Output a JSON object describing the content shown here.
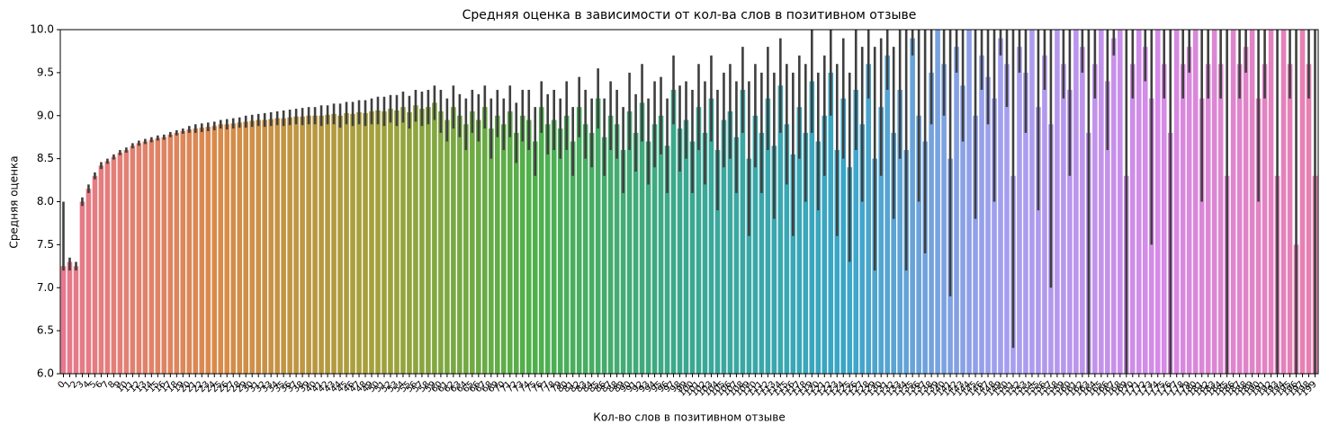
{
  "chart_data": {
    "type": "bar",
    "title": "Средняя оценка в зависимости от кол-ва слов в позитивном отзыве",
    "x_label": "Кол-во слов в позитивном отзыве",
    "y_label": "Средняя оценка",
    "ylim": [
      6,
      10
    ],
    "yticks": [
      {
        "value": 6,
        "label": "6.0"
      },
      {
        "value": 6.5,
        "label": "6.5"
      },
      {
        "value": 7,
        "label": "7.0"
      },
      {
        "value": 7.5,
        "label": "7.5"
      },
      {
        "value": 8,
        "label": "8.0"
      },
      {
        "value": 8.5,
        "label": "8.5"
      },
      {
        "value": 9,
        "label": "9.0"
      },
      {
        "value": 9.5,
        "label": "9.5"
      },
      {
        "value": 10,
        "label": "10.0"
      }
    ],
    "palette": [
      "#e8788f",
      "#d98b4a",
      "#a3a13a",
      "#4fb04a",
      "#3aa892",
      "#3aa6c8",
      "#a39ff0",
      "#d68ae8",
      "#e87fb0"
    ],
    "error_color": "#3f3f3f",
    "categories": [
      0,
      1,
      2,
      3,
      4,
      5,
      6,
      7,
      8,
      9,
      10,
      11,
      12,
      13,
      14,
      15,
      16,
      17,
      18,
      19,
      20,
      21,
      22,
      23,
      24,
      25,
      26,
      27,
      28,
      29,
      30,
      31,
      32,
      33,
      34,
      35,
      36,
      37,
      38,
      39,
      40,
      41,
      42,
      43,
      44,
      45,
      46,
      47,
      48,
      49,
      50,
      51,
      52,
      53,
      54,
      55,
      56,
      57,
      58,
      59,
      60,
      61,
      62,
      63,
      64,
      65,
      66,
      67,
      68,
      69,
      70,
      71,
      72,
      73,
      74,
      75,
      76,
      77,
      78,
      79,
      80,
      81,
      82,
      83,
      84,
      85,
      86,
      87,
      88,
      89,
      90,
      91,
      92,
      93,
      94,
      95,
      96,
      97,
      98,
      99,
      100,
      101,
      102,
      103,
      104,
      105,
      106,
      107,
      108,
      109,
      110,
      111,
      112,
      113,
      114,
      115,
      116,
      117,
      118,
      119,
      120,
      121,
      122,
      123,
      124,
      125,
      126,
      127,
      128,
      129,
      130,
      131,
      132,
      133,
      134,
      135,
      136,
      137,
      138,
      139,
      140,
      141,
      142,
      143,
      144,
      145,
      146,
      147,
      148,
      149,
      150,
      151,
      152,
      153,
      154,
      155,
      156,
      157,
      158,
      159,
      160,
      161,
      162,
      163,
      164,
      165,
      166,
      167,
      168,
      169,
      170,
      171,
      172,
      173,
      174,
      175,
      176,
      177,
      178,
      179,
      180,
      181,
      182,
      183,
      184,
      185,
      186,
      187,
      188,
      189,
      190,
      191,
      192,
      193,
      194,
      195,
      196,
      197,
      198,
      199
    ],
    "values": [
      7.25,
      7.3,
      7.25,
      8.0,
      8.15,
      8.3,
      8.42,
      8.47,
      8.52,
      8.57,
      8.6,
      8.65,
      8.68,
      8.7,
      8.72,
      8.74,
      8.75,
      8.78,
      8.8,
      8.82,
      8.84,
      8.85,
      8.86,
      8.87,
      8.88,
      8.9,
      8.9,
      8.91,
      8.92,
      8.93,
      8.94,
      8.95,
      8.95,
      8.96,
      8.97,
      8.97,
      8.98,
      8.99,
      8.99,
      9.0,
      9.0,
      9.0,
      9.01,
      9.02,
      9.0,
      9.03,
      9.02,
      9.04,
      9.03,
      9.05,
      9.06,
      9.05,
      9.08,
      9.06,
      9.1,
      9.04,
      9.12,
      9.08,
      9.1,
      9.15,
      9.05,
      8.95,
      9.1,
      9.0,
      8.9,
      9.05,
      8.95,
      9.1,
      8.85,
      9.0,
      8.9,
      9.05,
      8.8,
      9.0,
      8.95,
      8.7,
      9.1,
      8.9,
      8.95,
      8.85,
      9.0,
      8.7,
      9.1,
      8.9,
      8.8,
      9.2,
      8.75,
      9.0,
      8.9,
      8.6,
      9.05,
      8.8,
      9.15,
      8.7,
      8.9,
      9.0,
      8.65,
      9.3,
      8.85,
      8.95,
      8.7,
      9.1,
      8.8,
      9.2,
      8.6,
      8.95,
      9.05,
      8.75,
      9.3,
      8.5,
      9.0,
      8.8,
      9.2,
      8.65,
      9.35,
      8.9,
      8.55,
      9.1,
      8.8,
      9.4,
      8.7,
      9.0,
      9.5,
      8.6,
      9.2,
      8.4,
      9.3,
      8.9,
      9.6,
      8.5,
      9.1,
      9.7,
      8.8,
      9.3,
      8.6,
      9.9,
      9.0,
      8.7,
      9.5,
      10,
      9.6,
      8.5,
      9.8,
      9.35,
      10,
      9.0,
      9.7,
      9.45,
      9.2,
      9.9,
      9.6,
      8.3,
      9.8,
      9.5,
      10,
      9.1,
      9.7,
      8.9,
      10,
      9.6,
      9.3,
      10,
      9.8,
      8.8,
      9.6,
      10,
      9.4,
      9.9,
      10,
      8.3,
      9.6,
      10,
      9.8,
      9.2,
      10,
      9.6,
      8.8,
      10,
      9.6,
      9.8,
      10,
      9.2,
      9.6,
      10,
      9.6,
      8.3,
      10,
      9.6,
      9.8,
      10,
      9.2,
      9.6,
      10,
      8.3,
      10,
      9.6,
      7.5,
      10,
      9.6,
      8.3
    ],
    "ci_low": [
      7.2,
      7.2,
      7.2,
      7.95,
      8.1,
      8.26,
      8.38,
      8.44,
      8.49,
      8.54,
      8.57,
      8.62,
      8.65,
      8.67,
      8.69,
      8.71,
      8.72,
      8.75,
      8.77,
      8.79,
      8.8,
      8.8,
      8.81,
      8.82,
      8.83,
      8.85,
      8.84,
      8.85,
      8.86,
      8.86,
      8.87,
      8.88,
      8.87,
      8.88,
      8.89,
      8.88,
      8.89,
      8.9,
      8.89,
      8.9,
      8.9,
      8.88,
      8.9,
      8.9,
      8.86,
      8.9,
      8.88,
      8.9,
      8.88,
      8.9,
      8.9,
      8.88,
      8.92,
      8.88,
      8.92,
      8.85,
      8.93,
      8.88,
      8.9,
      8.95,
      8.8,
      8.7,
      8.85,
      8.75,
      8.6,
      8.8,
      8.7,
      8.85,
      8.5,
      8.75,
      8.6,
      8.75,
      8.45,
      8.7,
      8.6,
      8.3,
      8.8,
      8.55,
      8.6,
      8.5,
      8.6,
      8.3,
      8.75,
      8.5,
      8.4,
      8.85,
      8.3,
      8.6,
      8.5,
      8.1,
      8.6,
      8.35,
      8.7,
      8.2,
      8.4,
      8.55,
      8.1,
      8.9,
      8.35,
      8.5,
      8.1,
      8.6,
      8.2,
      8.7,
      7.9,
      8.4,
      8.5,
      8.1,
      8.8,
      7.6,
      8.4,
      8.1,
      8.6,
      7.8,
      8.8,
      8.2,
      7.6,
      8.5,
      8.0,
      8.8,
      7.9,
      8.3,
      9.0,
      7.6,
      8.5,
      7.3,
      8.6,
      8.0,
      9.2,
      7.2,
      8.3,
      9.3,
      7.8,
      8.5,
      7.2,
      9.7,
      8.0,
      7.4,
      8.9,
      10,
      9.0,
      6.9,
      9.5,
      8.7,
      10,
      7.8,
      9.3,
      8.9,
      8.0,
      9.7,
      9.1,
      6.3,
      9.5,
      8.8,
      10,
      7.9,
      9.3,
      7.0,
      10,
      9.2,
      8.3,
      10,
      9.5,
      6.0,
      9.2,
      10,
      8.6,
      9.7,
      10,
      6.0,
      9.2,
      10,
      9.4,
      7.5,
      10,
      9.2,
      6.0,
      10,
      9.2,
      9.5,
      10,
      8.0,
      9.2,
      10,
      9.2,
      6.0,
      10,
      9.2,
      9.5,
      10,
      8.0,
      9.2,
      10,
      6.0,
      10,
      9.2,
      6.0,
      10,
      9.2,
      6.0
    ],
    "ci_high": [
      8.0,
      7.35,
      7.3,
      8.05,
      8.2,
      8.34,
      8.46,
      8.5,
      8.55,
      8.6,
      8.63,
      8.68,
      8.71,
      8.73,
      8.75,
      8.77,
      8.78,
      8.81,
      8.83,
      8.85,
      8.88,
      8.9,
      8.91,
      8.92,
      8.93,
      8.95,
      8.96,
      8.97,
      8.98,
      9.0,
      9.01,
      9.02,
      9.03,
      9.04,
      9.05,
      9.06,
      9.07,
      9.08,
      9.09,
      9.1,
      9.1,
      9.12,
      9.12,
      9.14,
      9.14,
      9.16,
      9.16,
      9.18,
      9.18,
      9.2,
      9.22,
      9.22,
      9.24,
      9.24,
      9.28,
      9.23,
      9.3,
      9.28,
      9.3,
      9.35,
      9.3,
      9.2,
      9.35,
      9.25,
      9.2,
      9.3,
      9.25,
      9.35,
      9.2,
      9.3,
      9.2,
      9.35,
      9.15,
      9.3,
      9.3,
      9.1,
      9.4,
      9.25,
      9.3,
      9.2,
      9.4,
      9.1,
      9.45,
      9.3,
      9.2,
      9.55,
      9.2,
      9.4,
      9.3,
      9.1,
      9.5,
      9.25,
      9.6,
      9.2,
      9.4,
      9.45,
      9.2,
      9.7,
      9.35,
      9.4,
      9.3,
      9.6,
      9.4,
      9.7,
      9.3,
      9.5,
      9.6,
      9.4,
      9.8,
      9.4,
      9.6,
      9.5,
      9.8,
      9.5,
      9.9,
      9.6,
      9.5,
      9.7,
      9.6,
      10,
      9.5,
      9.7,
      10,
      9.6,
      9.9,
      9.5,
      10,
      9.8,
      10,
      9.8,
      9.9,
      10,
      9.8,
      10,
      10,
      10,
      10,
      10,
      10,
      10,
      10,
      10,
      10,
      10,
      10,
      10,
      10,
      10,
      10,
      10,
      10,
      10,
      10,
      10,
      10,
      10,
      10,
      10,
      10,
      10,
      10,
      10,
      10,
      10,
      10,
      10,
      10,
      10,
      10,
      10,
      10,
      10,
      10,
      10,
      10,
      10,
      10,
      10,
      10,
      10,
      10,
      10,
      10,
      10,
      10,
      10,
      10,
      10,
      10,
      10,
      10,
      10,
      10,
      10,
      10,
      10,
      10,
      10,
      10,
      10
    ]
  }
}
